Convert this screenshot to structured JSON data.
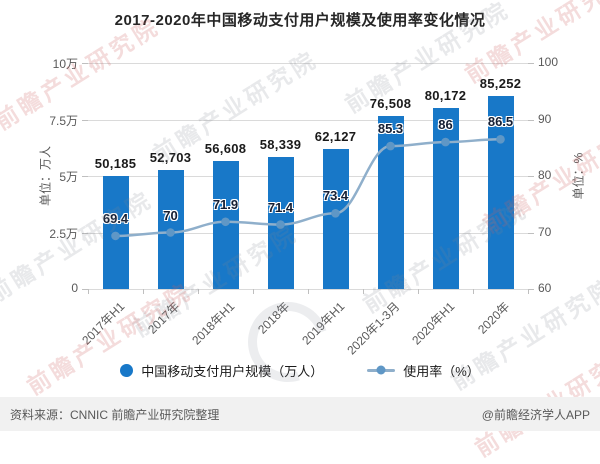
{
  "title": "2017-2020年中国移动支付用户规模及使用率变化情况",
  "chart_data": {
    "type": "bar+line",
    "categories": [
      "2017年H1",
      "2017年",
      "2018年H1",
      "2018年",
      "2019年H1",
      "2020年1-3月",
      "2020年H1",
      "2020年"
    ],
    "series": [
      {
        "name": "中国移动支付用户规模（万人）",
        "type": "bar",
        "axis": "left",
        "values": [
          50185,
          52703,
          56608,
          58339,
          62127,
          76508,
          80172,
          85252
        ],
        "value_labels": [
          "50,185",
          "52,703",
          "56,608",
          "58,339",
          "62,127",
          "76,508",
          "80,172",
          "85,252"
        ]
      },
      {
        "name": "使用率（%）",
        "type": "line",
        "axis": "right",
        "values": [
          69.4,
          70,
          71.9,
          71.4,
          73.4,
          85.3,
          86,
          86.5
        ],
        "value_labels": [
          "69.4",
          "70",
          "71.9",
          "71.4",
          "73.4",
          "85.3",
          "86",
          "86.5"
        ]
      }
    ],
    "left_axis": {
      "label": "单位：万人",
      "min": 0,
      "max": 100000,
      "ticks": [
        "10万",
        "7.5万",
        "5万",
        "2.5万",
        "0"
      ]
    },
    "right_axis": {
      "label": "单位：%",
      "min": 60,
      "max": 100,
      "ticks": [
        "100",
        "90",
        "80",
        "70",
        "60"
      ]
    },
    "grid": true,
    "legend_position": "bottom"
  },
  "footer": {
    "source": "资料来源：CNNIC 前瞻产业研究院整理",
    "credit": "@前瞻经济学人APP"
  },
  "watermark": {
    "text": "前瞻产业研究院"
  },
  "colors": {
    "bar": "#1878C8",
    "line": "#8FAFCB",
    "marker": "#5F97C6",
    "grid": "#DADADA",
    "axis_text": "#595959",
    "label_text": "#1A1A1A",
    "footer_bg": "#F1F1F1",
    "footer_text": "#595959",
    "watermark_gray": "rgba(125,135,145,0.18)",
    "watermark_red": "rgba(205,95,95,0.22)"
  }
}
